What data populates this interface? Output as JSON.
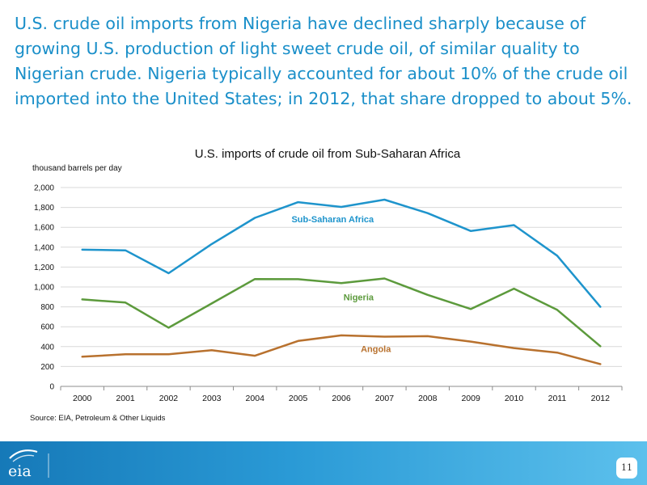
{
  "slide": {
    "headline": "U.S. crude oil imports from Nigeria have declined sharply because of growing U.S. production of light sweet crude oil, of similar quality to Nigerian crude. Nigeria typically accounted for about 10% of the crude oil imported into the United States; in 2012, that share dropped to about 5%.",
    "source": "Source: EIA, Petroleum & Other Liquids",
    "page_number": "11",
    "logo_text": "eia"
  },
  "colors": {
    "headline": "#1a8fc9",
    "sub_saharan_africa": "#1e94cc",
    "nigeria": "#5c9a3c",
    "angola": "#b8712e",
    "gridline": "#d9d9d9",
    "footer_band": "#2a9ad6"
  },
  "chart_data": {
    "type": "line",
    "title": "U.S. imports of crude oil from Sub-Saharan Africa",
    "ylabel": "thousand barrels per day",
    "xlabel": "",
    "x": [
      "2000",
      "2001",
      "2002",
      "2003",
      "2004",
      "2005",
      "2006",
      "2007",
      "2008",
      "2009",
      "2010",
      "2011",
      "2012"
    ],
    "ylim": [
      0,
      2000
    ],
    "yticks": [
      0,
      200,
      400,
      600,
      800,
      1000,
      1200,
      1400,
      1600,
      1800,
      2000
    ],
    "ytick_labels": [
      "0",
      "200",
      "400",
      "600",
      "800",
      "1,000",
      "1,200",
      "1,400",
      "1,600",
      "1,800",
      "2,000"
    ],
    "grid": true,
    "legend": "inline labels",
    "series": [
      {
        "name": "Sub-Saharan Africa",
        "color": "#1e94cc",
        "values": [
          1375,
          1368,
          1138,
          1432,
          1695,
          1853,
          1805,
          1878,
          1742,
          1563,
          1622,
          1315,
          800
        ]
      },
      {
        "name": "Nigeria",
        "color": "#5c9a3c",
        "values": [
          875,
          843,
          590,
          834,
          1080,
          1078,
          1038,
          1085,
          920,
          778,
          983,
          770,
          404
        ]
      },
      {
        "name": "Angola",
        "color": "#b8712e",
        "values": [
          298,
          323,
          323,
          364,
          308,
          457,
          513,
          500,
          505,
          450,
          385,
          340,
          224
        ]
      }
    ]
  }
}
